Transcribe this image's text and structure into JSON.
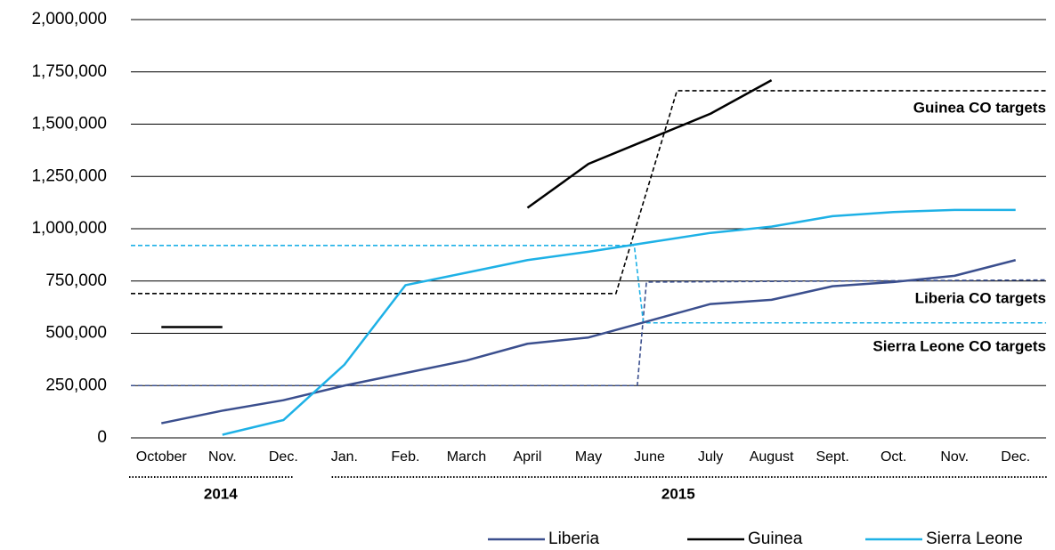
{
  "chart_data": {
    "type": "line",
    "categories": [
      "October",
      "Nov.",
      "Dec.",
      "Jan.",
      "Feb.",
      "March",
      "April",
      "May",
      "June",
      "July",
      "August",
      "Sept.",
      "Oct.",
      "Nov.",
      "Dec."
    ],
    "year_groups": [
      {
        "label": "2014",
        "start": 0,
        "end": 2
      },
      {
        "label": "2015",
        "start": 3,
        "end": 14
      }
    ],
    "series": [
      {
        "name": "Liberia",
        "color": "#3b4f8e",
        "values": [
          70000,
          130000,
          180000,
          250000,
          310000,
          370000,
          450000,
          480000,
          560000,
          640000,
          660000,
          725000,
          745000,
          775000,
          850000
        ]
      },
      {
        "name": "Guinea",
        "color": "#000000",
        "values": [
          530000,
          530000,
          null,
          null,
          null,
          null,
          1100000,
          1310000,
          1430000,
          1550000,
          1710000,
          null,
          null,
          null,
          null
        ]
      },
      {
        "name": "Sierra Leone",
        "color": "#1eb1e6",
        "values": [
          null,
          15000,
          85000,
          350000,
          730000,
          790000,
          850000,
          890000,
          935000,
          980000,
          1010000,
          1060000,
          1080000,
          1090000,
          1090000
        ]
      }
    ],
    "targets": [
      {
        "label": "Guinea CO targets",
        "color": "#000000",
        "x": [
          -0.5,
          7.45,
          8.45,
          14.5
        ],
        "values": [
          690000,
          690000,
          1660000,
          1660000
        ]
      },
      {
        "label": "Liberia CO targets",
        "color": "#3b4f8e",
        "x": [
          -0.5,
          7.8,
          7.95,
          14.5
        ],
        "values": [
          250000,
          250000,
          745000,
          755000
        ]
      },
      {
        "label": "Sierra Leone CO targets",
        "color": "#1eb1e6",
        "x": [
          -0.5,
          7.75,
          7.9,
          14.5
        ],
        "values": [
          920000,
          920000,
          550000,
          550000
        ]
      }
    ],
    "ylim": [
      0,
      2000000
    ],
    "yticks": [
      0,
      {
        "value": 250000,
        "label": "250,000"
      },
      {
        "value": 500000,
        "label": "500,000"
      },
      {
        "value": 750000,
        "label": "750,000"
      },
      {
        "value": 1000000,
        "label": "1,000,000"
      },
      {
        "value": 1250000,
        "label": "1,250,000"
      },
      {
        "value": 1500000,
        "label": "1,500,000"
      },
      {
        "value": 1750000,
        "label": "1,750,000"
      },
      {
        "value": 2000000,
        "label": "2,000,000"
      }
    ],
    "grid": true
  }
}
